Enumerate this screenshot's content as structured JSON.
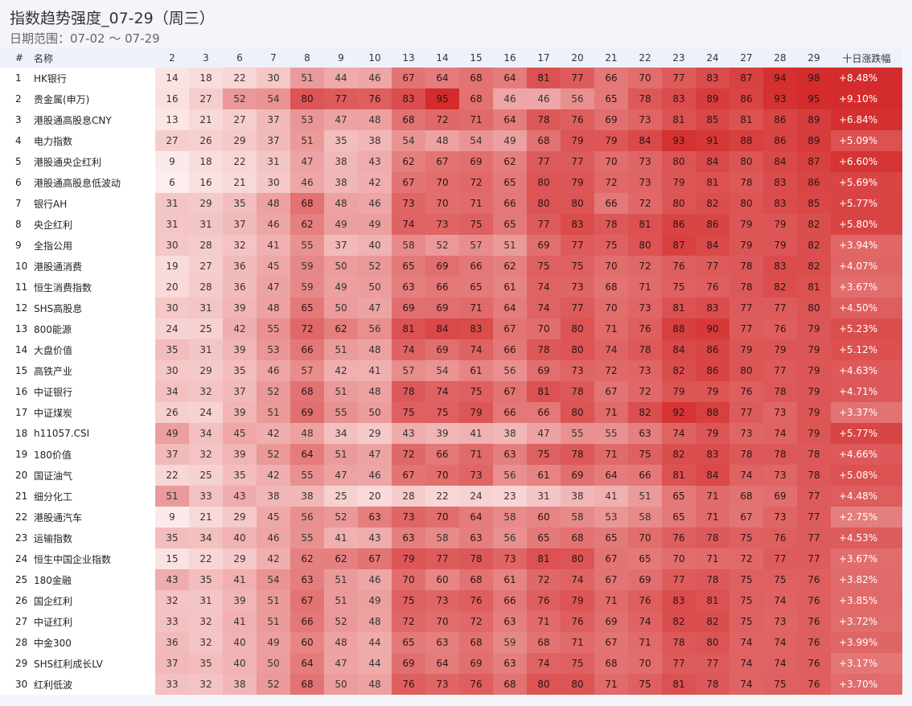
{
  "header": {
    "title": "指数趋势强度_07-29（周三）",
    "subtitle": "日期范围：07-02 ～ 07-29"
  },
  "table": {
    "headers": [
      "#",
      "名称",
      "2",
      "3",
      "6",
      "7",
      "8",
      "9",
      "10",
      "13",
      "14",
      "15",
      "16",
      "17",
      "20",
      "21",
      "22",
      "23",
      "24",
      "27",
      "28",
      "29",
      "十日涨跌幅"
    ],
    "rows": [
      {
        "idx": "1",
        "name": "HK银行",
        "values": [
          14,
          18,
          22,
          30,
          51,
          44,
          46,
          67,
          64,
          68,
          64,
          81,
          77,
          66,
          70,
          77,
          83,
          87,
          94,
          98
        ],
        "change": "+8.48%"
      },
      {
        "idx": "2",
        "name": "贵金属(申万)",
        "values": [
          16,
          27,
          52,
          54,
          80,
          77,
          76,
          83,
          95,
          68,
          46,
          46,
          56,
          65,
          78,
          83,
          89,
          86,
          93,
          95
        ],
        "change": "+9.10%"
      },
      {
        "idx": "3",
        "name": "港股通高股息CNY",
        "values": [
          13,
          21,
          27,
          37,
          53,
          47,
          48,
          68,
          72,
          71,
          64,
          78,
          76,
          69,
          73,
          81,
          85,
          81,
          86,
          89
        ],
        "change": "+6.84%"
      },
      {
        "idx": "4",
        "name": "电力指数",
        "values": [
          27,
          26,
          29,
          37,
          51,
          35,
          38,
          54,
          48,
          54,
          49,
          68,
          79,
          79,
          84,
          93,
          91,
          88,
          86,
          89
        ],
        "change": "+5.09%"
      },
      {
        "idx": "5",
        "name": "港股通央企红利",
        "values": [
          9,
          18,
          22,
          31,
          47,
          38,
          43,
          62,
          67,
          69,
          62,
          77,
          77,
          70,
          73,
          80,
          84,
          80,
          84,
          87
        ],
        "change": "+6.60%"
      },
      {
        "idx": "6",
        "name": "港股通高股息低波动",
        "values": [
          6,
          16,
          21,
          30,
          46,
          38,
          42,
          67,
          70,
          72,
          65,
          80,
          79,
          72,
          73,
          79,
          81,
          78,
          83,
          86
        ],
        "change": "+5.69%"
      },
      {
        "idx": "7",
        "name": "银行AH",
        "values": [
          31,
          29,
          35,
          48,
          68,
          48,
          46,
          73,
          70,
          71,
          66,
          80,
          80,
          66,
          72,
          80,
          82,
          80,
          83,
          85
        ],
        "change": "+5.77%"
      },
      {
        "idx": "8",
        "name": "央企红利",
        "values": [
          31,
          31,
          37,
          46,
          62,
          49,
          49,
          74,
          73,
          75,
          65,
          77,
          83,
          78,
          81,
          86,
          86,
          79,
          79,
          82
        ],
        "change": "+5.80%"
      },
      {
        "idx": "9",
        "name": "全指公用",
        "values": [
          30,
          28,
          32,
          41,
          55,
          37,
          40,
          58,
          52,
          57,
          51,
          69,
          77,
          75,
          80,
          87,
          84,
          79,
          79,
          82
        ],
        "change": "+3.94%"
      },
      {
        "idx": "10",
        "name": "港股通消费",
        "values": [
          19,
          27,
          36,
          45,
          59,
          50,
          52,
          65,
          69,
          66,
          62,
          75,
          75,
          70,
          72,
          76,
          77,
          78,
          83,
          82
        ],
        "change": "+4.07%"
      },
      {
        "idx": "11",
        "name": "恒生消费指数",
        "values": [
          20,
          28,
          36,
          47,
          59,
          49,
          50,
          63,
          66,
          65,
          61,
          74,
          73,
          68,
          71,
          75,
          76,
          78,
          82,
          81
        ],
        "change": "+3.67%"
      },
      {
        "idx": "12",
        "name": "SHS高股息",
        "values": [
          30,
          31,
          39,
          48,
          65,
          50,
          47,
          69,
          69,
          71,
          64,
          74,
          77,
          70,
          73,
          81,
          83,
          77,
          77,
          80
        ],
        "change": "+4.50%"
      },
      {
        "idx": "13",
        "name": "800能源",
        "values": [
          24,
          25,
          42,
          55,
          72,
          62,
          56,
          81,
          84,
          83,
          67,
          70,
          80,
          71,
          76,
          88,
          90,
          77,
          76,
          79
        ],
        "change": "+5.23%"
      },
      {
        "idx": "14",
        "name": "大盘价值",
        "values": [
          35,
          31,
          39,
          53,
          66,
          51,
          48,
          74,
          69,
          74,
          66,
          78,
          80,
          74,
          78,
          84,
          86,
          79,
          79,
          79
        ],
        "change": "+5.12%"
      },
      {
        "idx": "15",
        "name": "高铁产业",
        "values": [
          30,
          29,
          35,
          46,
          57,
          42,
          41,
          57,
          54,
          61,
          56,
          69,
          73,
          72,
          73,
          82,
          86,
          80,
          77,
          79
        ],
        "change": "+4.63%"
      },
      {
        "idx": "16",
        "name": "中证银行",
        "values": [
          34,
          32,
          37,
          52,
          68,
          51,
          48,
          78,
          74,
          75,
          67,
          81,
          78,
          67,
          72,
          79,
          79,
          76,
          78,
          79
        ],
        "change": "+4.71%"
      },
      {
        "idx": "17",
        "name": "中证煤炭",
        "values": [
          26,
          24,
          39,
          51,
          69,
          55,
          50,
          75,
          75,
          79,
          66,
          66,
          80,
          71,
          82,
          92,
          88,
          77,
          73,
          79
        ],
        "change": "+3.37%"
      },
      {
        "idx": "18",
        "name": "h11057.CSI",
        "values": [
          49,
          34,
          45,
          42,
          48,
          34,
          29,
          43,
          39,
          41,
          38,
          47,
          55,
          55,
          63,
          74,
          79,
          73,
          74,
          79
        ],
        "change": "+5.77%"
      },
      {
        "idx": "19",
        "name": "180价值",
        "values": [
          37,
          32,
          39,
          52,
          64,
          51,
          47,
          72,
          66,
          71,
          63,
          75,
          78,
          71,
          75,
          82,
          83,
          78,
          78,
          78
        ],
        "change": "+4.66%"
      },
      {
        "idx": "20",
        "name": "国证油气",
        "values": [
          22,
          25,
          35,
          42,
          55,
          47,
          46,
          67,
          70,
          73,
          56,
          61,
          69,
          64,
          66,
          81,
          84,
          74,
          73,
          78
        ],
        "change": "+5.08%"
      },
      {
        "idx": "21",
        "name": "细分化工",
        "values": [
          51,
          33,
          43,
          38,
          38,
          25,
          20,
          28,
          22,
          24,
          23,
          31,
          38,
          41,
          51,
          65,
          71,
          68,
          69,
          77
        ],
        "change": "+4.48%"
      },
      {
        "idx": "22",
        "name": "港股通汽车",
        "values": [
          9,
          21,
          29,
          45,
          56,
          52,
          63,
          73,
          70,
          64,
          58,
          60,
          58,
          53,
          58,
          65,
          71,
          67,
          73,
          77
        ],
        "change": "+2.75%"
      },
      {
        "idx": "23",
        "name": "运输指数",
        "values": [
          35,
          34,
          40,
          46,
          55,
          41,
          43,
          63,
          58,
          63,
          56,
          65,
          68,
          65,
          70,
          76,
          78,
          75,
          76,
          77
        ],
        "change": "+4.53%"
      },
      {
        "idx": "24",
        "name": "恒生中国企业指数",
        "values": [
          15,
          22,
          29,
          42,
          62,
          62,
          67,
          79,
          77,
          78,
          73,
          81,
          80,
          67,
          65,
          70,
          71,
          72,
          77,
          77
        ],
        "change": "+3.67%"
      },
      {
        "idx": "25",
        "name": "180金融",
        "values": [
          43,
          35,
          41,
          54,
          63,
          51,
          46,
          70,
          60,
          68,
          61,
          72,
          74,
          67,
          69,
          77,
          78,
          75,
          75,
          76
        ],
        "change": "+3.82%"
      },
      {
        "idx": "26",
        "name": "国企红利",
        "values": [
          32,
          31,
          39,
          51,
          67,
          51,
          49,
          75,
          73,
          76,
          66,
          76,
          79,
          71,
          76,
          83,
          81,
          75,
          74,
          76
        ],
        "change": "+3.85%"
      },
      {
        "idx": "27",
        "name": "中证红利",
        "values": [
          33,
          32,
          41,
          51,
          66,
          52,
          48,
          72,
          70,
          72,
          63,
          71,
          76,
          69,
          74,
          82,
          82,
          75,
          73,
          76
        ],
        "change": "+3.72%"
      },
      {
        "idx": "28",
        "name": "中金300",
        "values": [
          36,
          32,
          40,
          49,
          60,
          48,
          44,
          65,
          63,
          68,
          59,
          68,
          71,
          67,
          71,
          78,
          80,
          74,
          74,
          76
        ],
        "change": "+3.99%"
      },
      {
        "idx": "29",
        "name": "SHS红利成长LV",
        "values": [
          37,
          35,
          40,
          50,
          64,
          47,
          44,
          69,
          64,
          69,
          63,
          74,
          75,
          68,
          70,
          77,
          77,
          74,
          74,
          76
        ],
        "change": "+3.17%"
      },
      {
        "idx": "30",
        "name": "红利低波",
        "values": [
          33,
          32,
          38,
          52,
          68,
          50,
          48,
          76,
          73,
          76,
          68,
          80,
          80,
          71,
          75,
          81,
          78,
          74,
          75,
          76
        ],
        "change": "+3.70%"
      }
    ]
  },
  "colors": {
    "heat_low": "#fdeeee",
    "heat_high": "#d42c2c",
    "header_bg": "#eef1fb",
    "page_bg": "#f4f5fa"
  }
}
